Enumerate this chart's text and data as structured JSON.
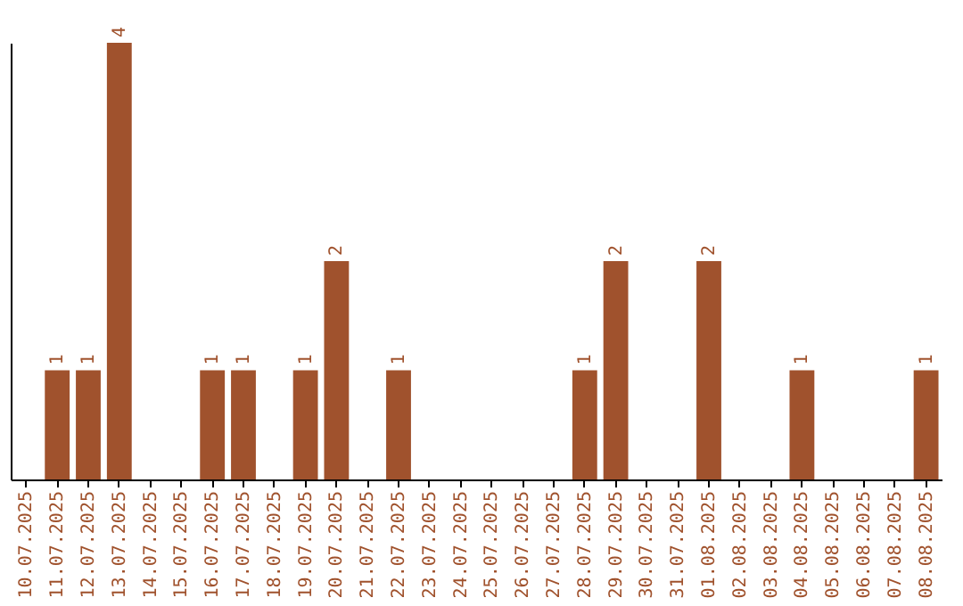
{
  "chart_data": {
    "type": "bar",
    "categories": [
      "10.07.2025",
      "11.07.2025",
      "12.07.2025",
      "13.07.2025",
      "14.07.2025",
      "15.07.2025",
      "16.07.2025",
      "17.07.2025",
      "18.07.2025",
      "19.07.2025",
      "20.07.2025",
      "21.07.2025",
      "22.07.2025",
      "23.07.2025",
      "24.07.2025",
      "25.07.2025",
      "26.07.2025",
      "27.07.2025",
      "28.07.2025",
      "29.07.2025",
      "30.07.2025",
      "31.07.2025",
      "01.08.2025",
      "02.08.2025",
      "03.08.2025",
      "04.08.2025",
      "05.08.2025",
      "06.08.2025",
      "07.08.2025",
      "08.08.2025"
    ],
    "values": [
      0,
      1,
      1,
      4,
      0,
      0,
      1,
      1,
      0,
      1,
      2,
      0,
      1,
      0,
      0,
      0,
      0,
      0,
      1,
      2,
      0,
      0,
      2,
      0,
      0,
      1,
      0,
      0,
      0,
      1
    ],
    "value_labels": [
      null,
      "1",
      "1",
      "4",
      null,
      null,
      "1",
      "1",
      null,
      "1",
      "2",
      null,
      "1",
      null,
      null,
      null,
      null,
      null,
      "1",
      "2",
      null,
      null,
      "2",
      null,
      null,
      "1",
      null,
      null,
      null,
      "1"
    ],
    "color": "#a0522d",
    "ylim": [
      0,
      4
    ],
    "tick_labels": "x"
  }
}
